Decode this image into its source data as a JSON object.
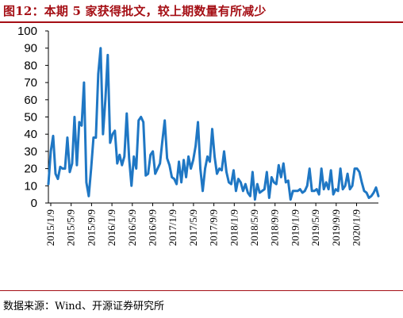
{
  "figure": {
    "title": "图12：本期 5 家获得批文，较上期数量有所减少",
    "source": "数据来源：Wind、开源证券研究所"
  },
  "chart_data": {
    "type": "line",
    "title": "图12：本期 5 家获得批文，较上期数量有所减少",
    "xlabel": "",
    "ylabel": "",
    "ylim": [
      0,
      100
    ],
    "yticks": [
      0,
      10,
      20,
      30,
      40,
      50,
      60,
      70,
      80,
      90,
      100
    ],
    "xtick_labels": [
      "2015/1/9",
      "2015/5/9",
      "2015/9/9",
      "2016/1/9",
      "2016/5/9",
      "2016/9/9",
      "2017/1/9",
      "2017/5/9",
      "2017/9/9",
      "2018/1/9",
      "2018/5/9",
      "2018/9/9",
      "2019/1/9",
      "2019/5/9",
      "2019/9/9",
      "2020/1/9"
    ],
    "line_color": "#1f77c4",
    "grid": false,
    "legend": "none",
    "series": [
      {
        "values": [
          11,
          30,
          39,
          17,
          14,
          21,
          20,
          20,
          38,
          18,
          23,
          50,
          22,
          47,
          45,
          70,
          12,
          4,
          20,
          38,
          38,
          75,
          90,
          40,
          60,
          86,
          35,
          40,
          42,
          23,
          28,
          22,
          27,
          52,
          26,
          10,
          27,
          20,
          48,
          50,
          47,
          16,
          17,
          28,
          30,
          17,
          20,
          23,
          36,
          48,
          26,
          22,
          15,
          14,
          11,
          24,
          12,
          25,
          15,
          27,
          20,
          25,
          33,
          47,
          20,
          7,
          20,
          27,
          24,
          43,
          27,
          17,
          20,
          19,
          30,
          18,
          12,
          11,
          19,
          7,
          14,
          12,
          7,
          11,
          6,
          4,
          18,
          2,
          11,
          6,
          7,
          8,
          18,
          3,
          15,
          12,
          11,
          22,
          15,
          23,
          12,
          13,
          2,
          7,
          7,
          7,
          8,
          6,
          7,
          10,
          20,
          7,
          7,
          8,
          5,
          20,
          8,
          12,
          8,
          19,
          5,
          8,
          7,
          20,
          8,
          10,
          17,
          8,
          10,
          20,
          20,
          18,
          12,
          7,
          6,
          3,
          4,
          6,
          9,
          4
        ]
      }
    ]
  }
}
